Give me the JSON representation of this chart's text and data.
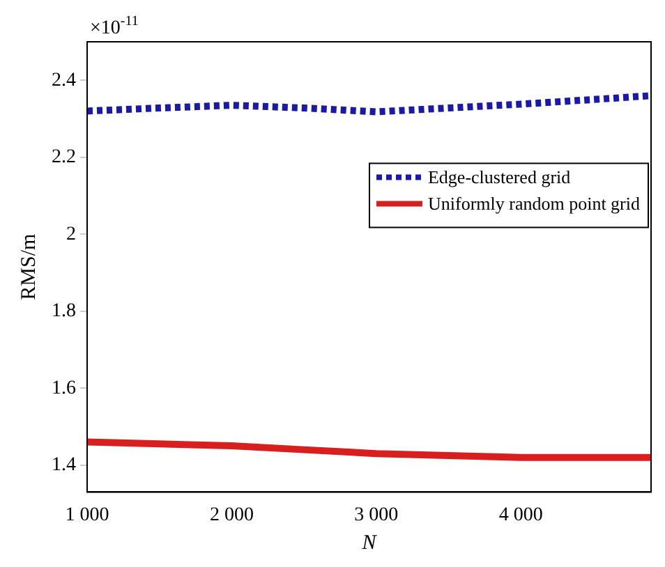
{
  "chart_data": {
    "type": "line",
    "xlabel": "N",
    "ylabel": "RMS/m",
    "annotations": [
      "×10$^{-11}$"
    ],
    "xlim": [
      1000,
      4900
    ],
    "xticks": [
      {
        "value": 1000,
        "label": "1 000"
      },
      {
        "value": 2000,
        "label": "2 000"
      },
      {
        "value": 3000,
        "label": "3 000"
      },
      {
        "value": 4000,
        "label": "4 000"
      }
    ],
    "ylim": [
      1.33,
      2.5
    ],
    "yticks": [
      1.4,
      1.6,
      1.8,
      2,
      2.2,
      2.4
    ],
    "legend": "right",
    "grid": false,
    "series": [
      {
        "name": "Edge-clustered grid",
        "color": "#1a1aa6",
        "line_style": "dotted",
        "x": [
          1000,
          1500,
          2000,
          2500,
          3000,
          3500,
          4000,
          4500,
          4900
        ],
        "values": [
          2.32,
          2.328,
          2.335,
          2.328,
          2.318,
          2.328,
          2.338,
          2.35,
          2.36
        ]
      },
      {
        "name": "Uniformly random point grid",
        "color": "#d81e1e",
        "line_style": "solid",
        "x": [
          1000,
          1500,
          2000,
          2500,
          3000,
          3500,
          4000,
          4500,
          4900
        ],
        "values": [
          1.46,
          1.455,
          1.45,
          1.44,
          1.43,
          1.425,
          1.42,
          1.42,
          1.42
        ]
      }
    ]
  }
}
